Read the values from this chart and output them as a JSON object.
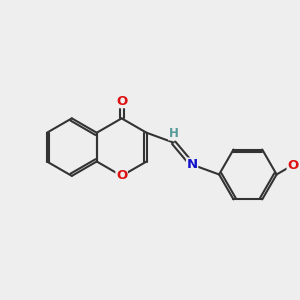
{
  "background_color": "#eeeeee",
  "bond_color": "#333333",
  "bond_width": 1.5,
  "atom_colors": {
    "O": "#dd1111",
    "N": "#1111cc",
    "H": "#559999",
    "C": "#333333"
  },
  "font_size_atom": 9.5,
  "font_size_h": 8.5
}
